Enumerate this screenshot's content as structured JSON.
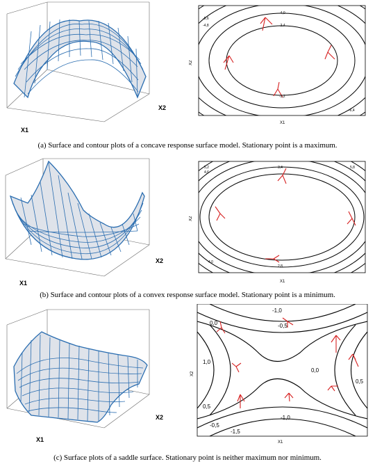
{
  "panels": [
    {
      "id": "a",
      "caption": "(a)  Surface and contour plots of a concave response surface model. Stationary point is a maximum.",
      "surface": {
        "x1_label": "X1",
        "x2_label": "X2",
        "shape": "concave"
      },
      "contour": {
        "x_label": "X1",
        "y_label": "X2",
        "levels": [
          "-2,4",
          "-3,2",
          "-4,0",
          "-4,8",
          "-5,6",
          "-6,4"
        ]
      }
    },
    {
      "id": "b",
      "caption": "(b)  Surface and contour plots of a convex response surface model. Stationary point is a minimum.",
      "surface": {
        "x1_label": "X1",
        "x2_label": "X2",
        "shape": "convex"
      },
      "contour": {
        "x_label": "X1",
        "y_label": "X2",
        "levels": [
          "2,8",
          "3,4",
          "4,0",
          "4,6",
          "5,2",
          "5,8"
        ]
      }
    },
    {
      "id": "c",
      "caption": "(c)  Surface plots of a saddle surface. Stationary point is neither maximum nor minimum.",
      "surface": {
        "x1_label": "X1",
        "x2_label": "X2",
        "shape": "saddle"
      },
      "contour": {
        "x_label": "X1",
        "y_label": "X2",
        "levels": [
          "-1,5",
          "-1,0",
          "-0,5",
          "0,0",
          "0,5",
          "1,0"
        ]
      }
    }
  ],
  "colors": {
    "surface_line": "#2a6db0",
    "surface_fill": "#dfe3ea",
    "arrow": "#d62020",
    "contour": "#000000"
  }
}
